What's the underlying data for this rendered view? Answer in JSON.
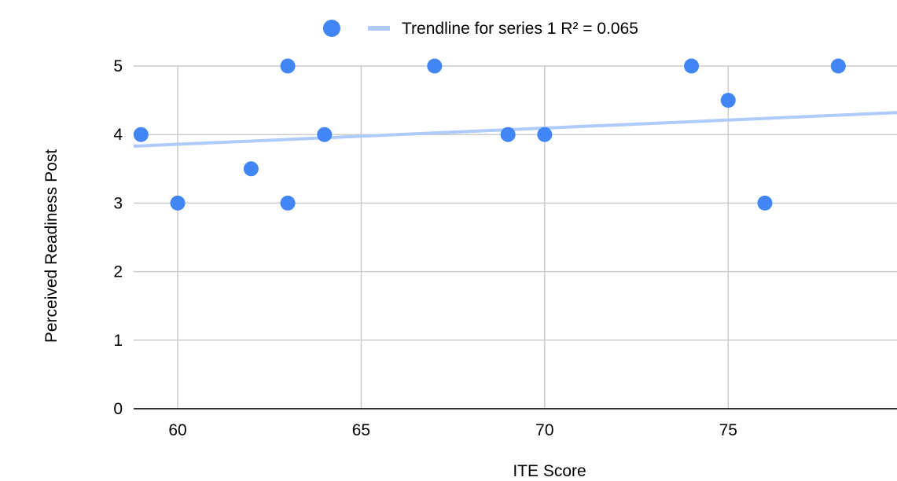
{
  "chart_data": {
    "type": "scatter",
    "xlabel": "ITE Score",
    "ylabel": "Perceived Readiness Post",
    "xlim": [
      58.8,
      79.6
    ],
    "ylim": [
      0,
      5
    ],
    "x_ticks": [
      60,
      65,
      70,
      75
    ],
    "y_ticks": [
      0,
      1,
      2,
      3,
      4,
      5
    ],
    "grid": true,
    "legend_position": "top-center",
    "series": [
      {
        "x": [
          59,
          60,
          62,
          63,
          63,
          64,
          67,
          69,
          70,
          74,
          75,
          76,
          78
        ],
        "y": [
          4,
          3,
          3.5,
          5,
          3,
          4,
          5,
          4,
          4,
          5,
          4.5,
          3,
          5
        ],
        "color": "#4285f4"
      }
    ],
    "trendline": {
      "label": "Trendline for series 1 R² = 0.065",
      "x": [
        58.8,
        79.6
      ],
      "y": [
        3.83,
        4.32
      ],
      "color": "#aecbfa"
    }
  }
}
